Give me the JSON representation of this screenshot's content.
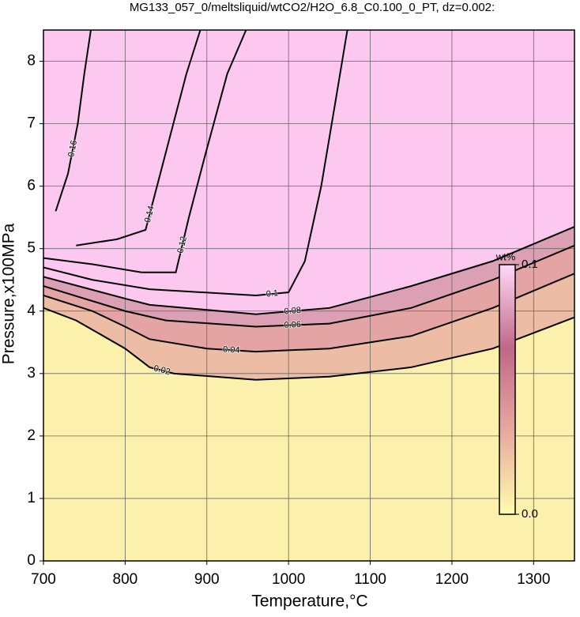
{
  "chart_data": {
    "type": "contour",
    "title": "MG133_057_0/meltsliquid/wtCO2/H2O_6.8_C0.100_0_PT, dz=0.002:",
    "x_label": "Temperature,°C",
    "y_label": "Pressure,x100MPa",
    "xlim": [
      700,
      1350
    ],
    "ylim": [
      0,
      8.5
    ],
    "xticks": [
      700,
      800,
      900,
      1000,
      1100,
      1200,
      1300
    ],
    "yticks": [
      0,
      1,
      2,
      3,
      4,
      5,
      6,
      7,
      8
    ],
    "grid": true,
    "background": "#fcc8f0",
    "contours": [
      {
        "level": 0.16,
        "x": [
          715,
          730,
          742,
          750,
          758
        ],
        "y": [
          5.6,
          6.2,
          7.0,
          7.8,
          8.5
        ]
      },
      {
        "level": 0.14,
        "x": [
          740,
          790,
          825,
          835,
          855,
          875,
          892
        ],
        "y": [
          5.05,
          5.15,
          5.3,
          5.8,
          6.8,
          7.8,
          8.5
        ]
      },
      {
        "level": 0.12,
        "x": [
          700,
          760,
          820,
          862,
          878,
          898,
          925,
          948
        ],
        "y": [
          4.85,
          4.75,
          4.62,
          4.62,
          5.5,
          6.5,
          7.8,
          8.5
        ]
      },
      {
        "level": 0.1,
        "x": [
          700,
          760,
          830,
          960,
          1000,
          1020,
          1040,
          1058,
          1072
        ],
        "y": [
          4.7,
          4.5,
          4.35,
          4.25,
          4.3,
          4.8,
          6.0,
          7.4,
          8.5
        ]
      },
      {
        "level": 0.08,
        "fill": "#dca0b4",
        "x": [
          700,
          800,
          830,
          960,
          1050,
          1150,
          1250,
          1350
        ],
        "y": [
          4.55,
          4.2,
          4.1,
          3.95,
          4.05,
          4.4,
          4.8,
          5.35
        ]
      },
      {
        "level": 0.06,
        "fill": "#e4a4a4",
        "x": [
          700,
          800,
          850,
          960,
          1050,
          1150,
          1250,
          1350
        ],
        "y": [
          4.4,
          4.0,
          3.85,
          3.75,
          3.8,
          4.05,
          4.5,
          5.05
        ]
      },
      {
        "level": 0.04,
        "fill": "#ecbca4",
        "x": [
          700,
          760,
          800,
          830,
          900,
          960,
          1050,
          1150,
          1250,
          1350
        ],
        "y": [
          4.25,
          4.0,
          3.75,
          3.55,
          3.4,
          3.35,
          3.4,
          3.6,
          4.05,
          4.6
        ]
      },
      {
        "level": 0.02,
        "fill": "#f6dcaa",
        "x": [
          700,
          740,
          760,
          800,
          830,
          860,
          960,
          1050,
          1150,
          1250,
          1350
        ],
        "y": [
          4.05,
          3.85,
          3.7,
          3.4,
          3.1,
          3.0,
          2.9,
          2.95,
          3.1,
          3.4,
          3.9
        ]
      }
    ],
    "base_color": "#fdfaae",
    "colorbar": {
      "label": "wt%",
      "colors": [
        "#fffcae",
        "#e8a8a0",
        "#c06888",
        "#ffd8f8"
      ],
      "ticks": [
        {
          "value": 0.1,
          "label": "0.1"
        },
        {
          "value": 0,
          "label": "0.0"
        }
      ],
      "lim": [
        0,
        0.1
      ]
    }
  }
}
